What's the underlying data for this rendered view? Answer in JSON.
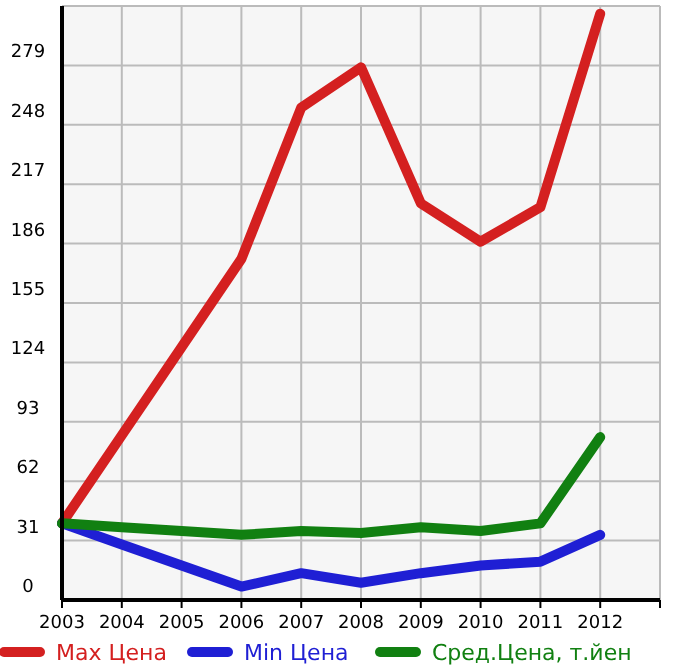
{
  "chart_data": {
    "type": "line",
    "x": [
      2003,
      2004,
      2005,
      2006,
      2007,
      2008,
      2009,
      2010,
      2011,
      2012
    ],
    "series": [
      {
        "name": "Max Цена",
        "color": "#d42020",
        "values": [
          40,
          86,
          132,
          178,
          257,
          278,
          207,
          187,
          205,
          306
        ]
      },
      {
        "name": "Min Цена",
        "color": "#1f1fd4",
        "values": [
          40,
          29,
          18,
          7,
          14,
          9,
          14,
          18,
          20,
          34
        ]
      },
      {
        "name": "Сред.Цена, т.йен",
        "color": "#118011",
        "values": [
          40,
          38,
          36,
          34,
          36,
          35,
          38,
          36,
          40,
          85
        ]
      }
    ],
    "xlim": [
      2003,
      2013
    ],
    "xticks": [
      2003,
      2004,
      2005,
      2006,
      2007,
      2008,
      2009,
      2010,
      2011,
      2012,
      {
        "value": 2013,
        "label": null
      }
    ],
    "ylim": [
      0,
      310
    ],
    "yticks": [
      0,
      31,
      62,
      93,
      124,
      155,
      186,
      217,
      248,
      279,
      {
        "value": 310,
        "label": null
      }
    ],
    "grid": true,
    "legend": "bottom",
    "marker": "none",
    "line_style": "solid"
  }
}
